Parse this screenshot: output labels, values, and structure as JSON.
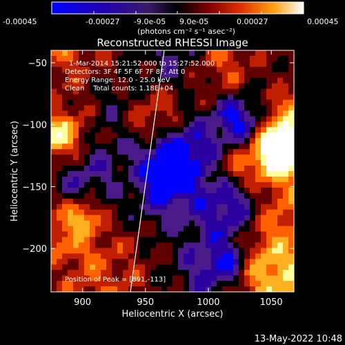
{
  "colorbar": {
    "ticks": [
      "-0.00045",
      "-0.00027",
      "-9.0e-05",
      "9.0e-05",
      "0.00027",
      "0.00045"
    ],
    "units": "(photons cm⁻² s⁻¹ asec⁻²)"
  },
  "chart_data": {
    "type": "heatmap",
    "title": "Reconstructed RHESSI Image",
    "xlabel": "Heliocentric X (arcsec)",
    "ylabel": "Heliocentric Y (arcsec)",
    "xlim": [
      875,
      1068
    ],
    "ylim": [
      -235,
      -40
    ],
    "xticks": [
      900,
      950,
      1000,
      1050
    ],
    "yticks": [
      -50,
      -100,
      -150,
      -200
    ],
    "clim": [
      -0.00045,
      0.00045
    ],
    "colormap": [
      "#0000ff",
      "#2a00a0",
      "#4a1a8a",
      "#000000",
      "#600000",
      "#c02000",
      "#ff6000",
      "#ffb020",
      "#ffffa0",
      "#ffffff"
    ],
    "annotations": [
      "1-Mar-2014 15:21:52.000 to 15:27:52.000",
      "Detectors: 3F 4F 5F 6F 7F 8F, Att 0",
      "Energy Range: 12.0 - 25.0 keV",
      "Clean    Total counts: 1.18E+04"
    ],
    "peak_label": "Position of Peak = [891,-113]",
    "peak": [
      891,
      -113
    ]
  },
  "footer": {
    "date": "13-May-2022 10:48"
  }
}
